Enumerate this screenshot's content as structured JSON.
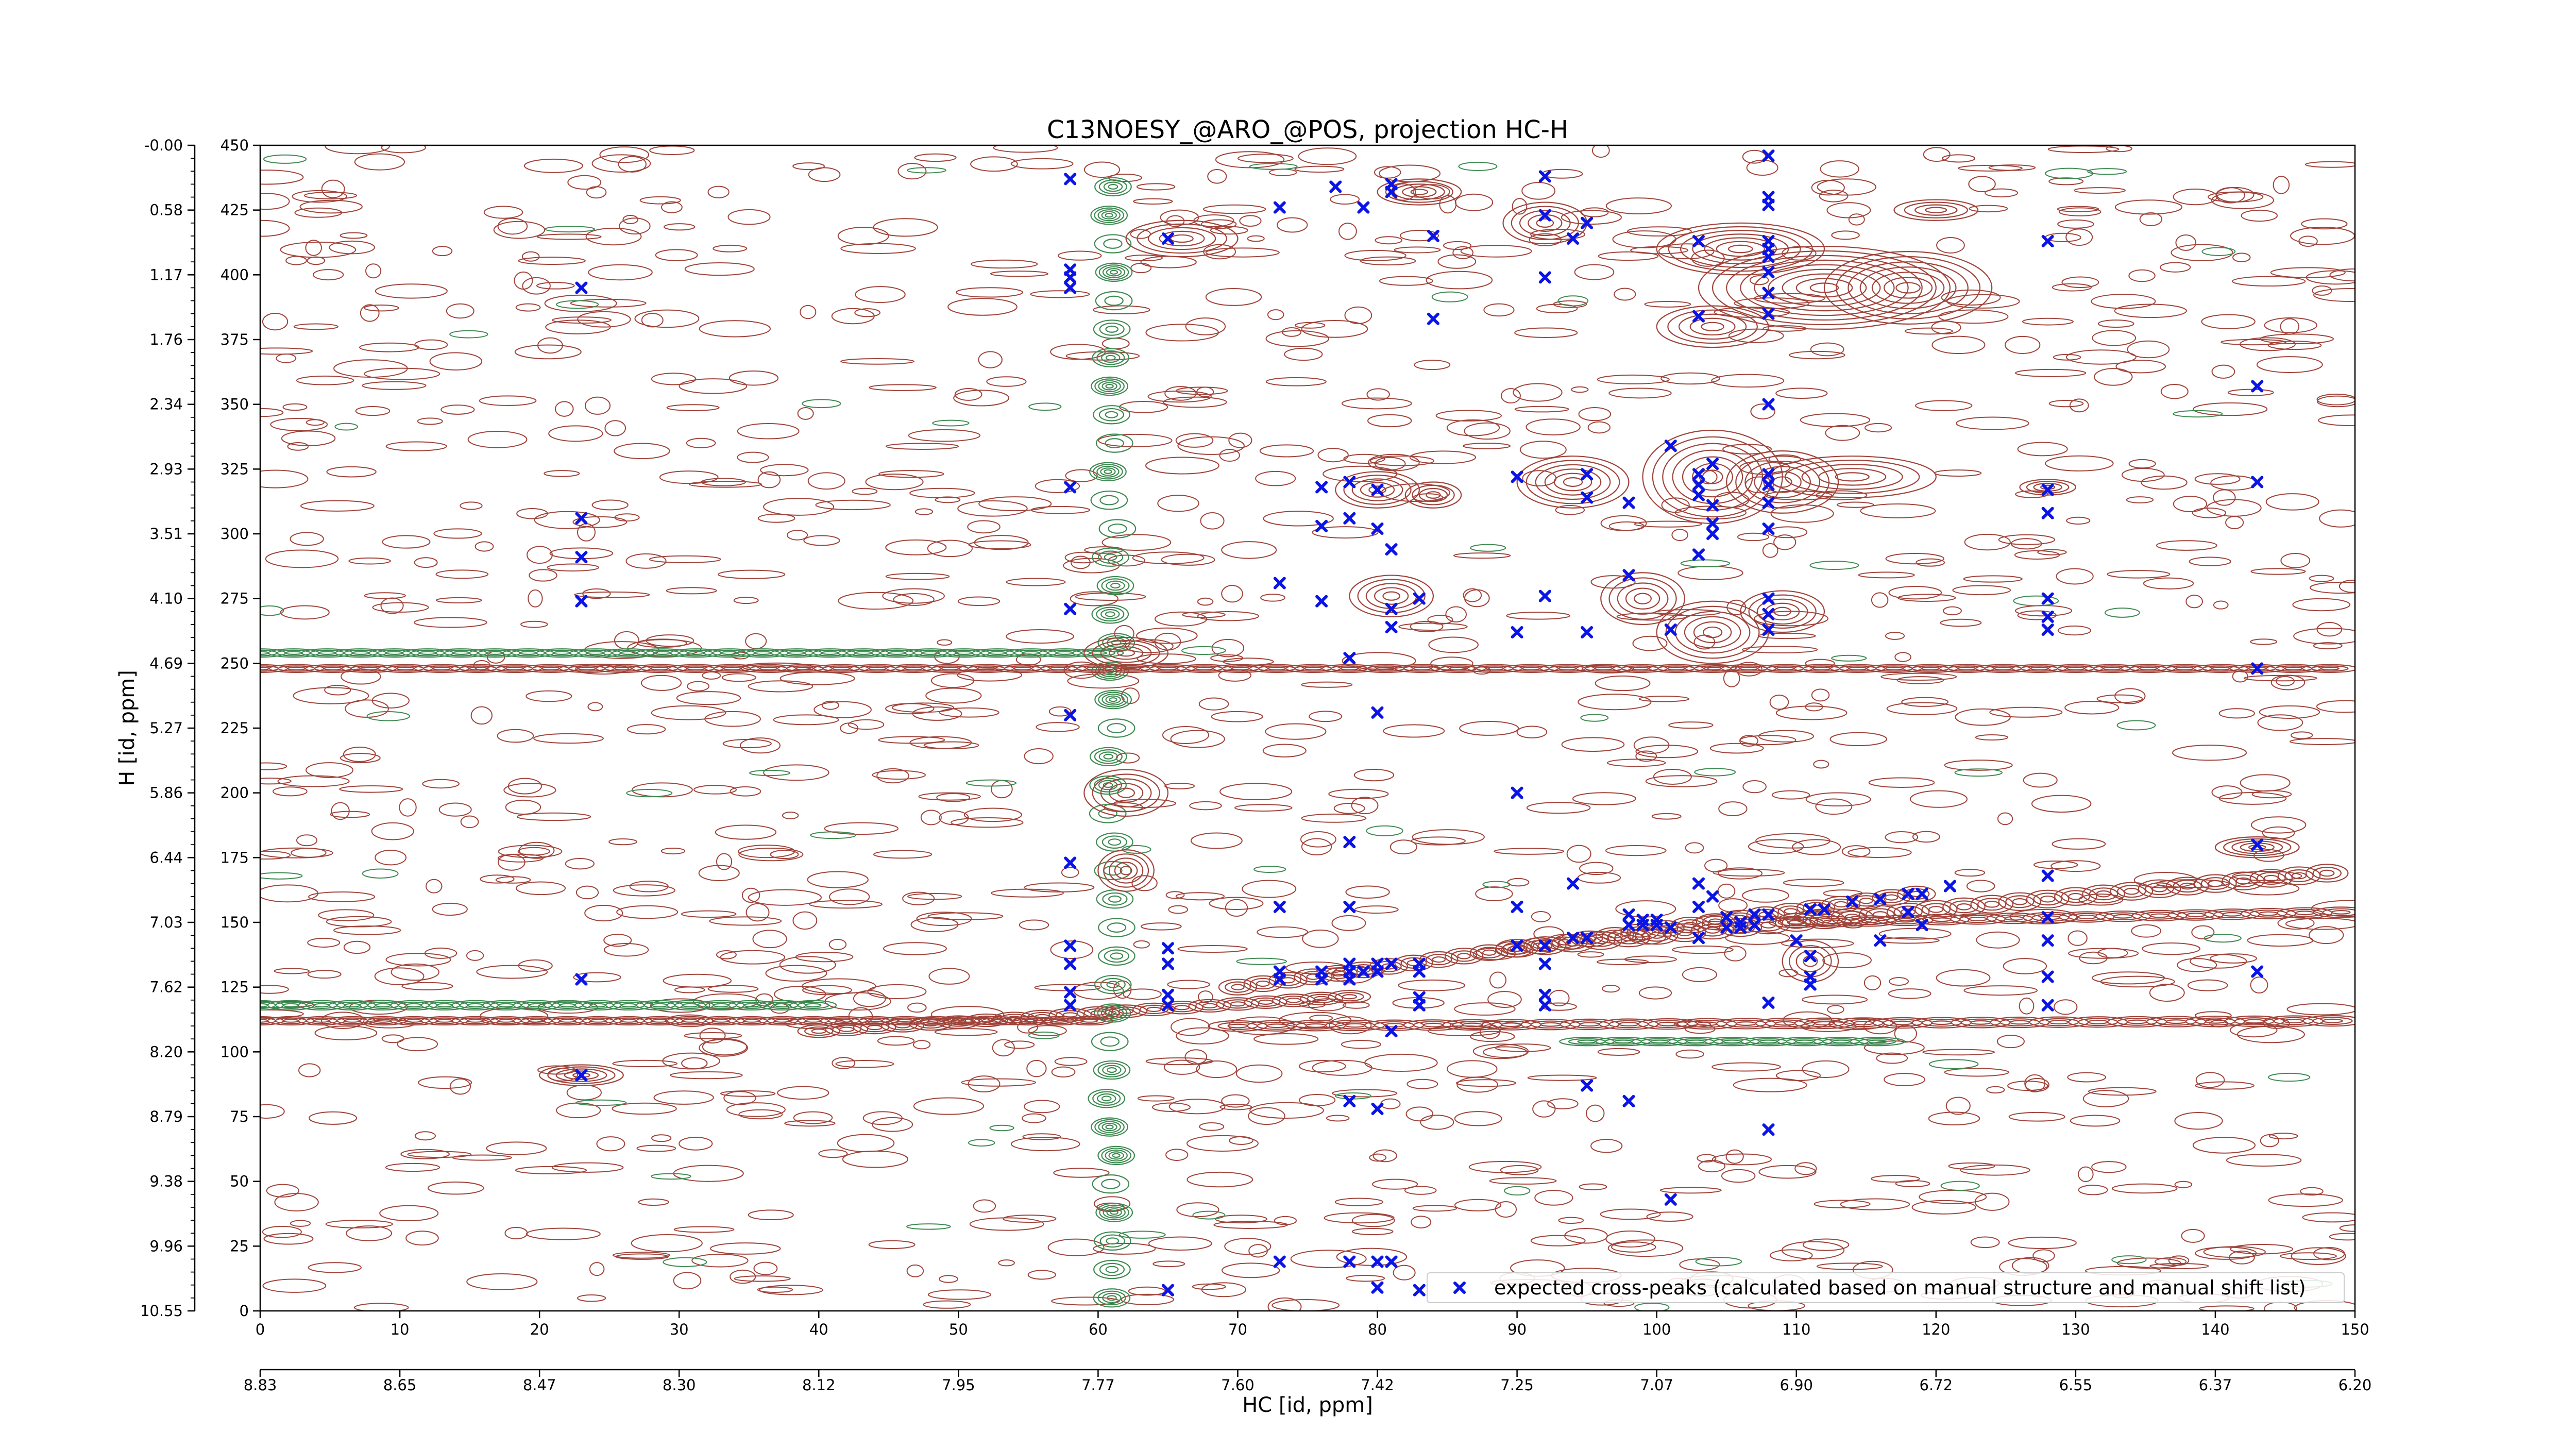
{
  "chart_data": {
    "type": "scatter",
    "title": "C13NOESY_@ARO_@POS, projection HC-H",
    "xlabel": "HC [id, ppm]",
    "ylabel": "H [id, ppm]",
    "xlim": [
      0,
      150
    ],
    "ylim": [
      0,
      450
    ],
    "x_ticks": [
      0,
      10,
      20,
      30,
      40,
      50,
      60,
      70,
      80,
      90,
      100,
      110,
      120,
      130,
      140,
      150
    ],
    "x_ppm_ticks": [
      "8.83",
      "8.65",
      "8.47",
      "8.30",
      "8.12",
      "7.95",
      "7.77",
      "7.60",
      "7.42",
      "7.25",
      "7.07",
      "6.90",
      "6.72",
      "6.55",
      "6.37",
      "6.20"
    ],
    "y_ticks": [
      450,
      425,
      400,
      375,
      350,
      325,
      300,
      275,
      250,
      225,
      200,
      175,
      150,
      125,
      100,
      75,
      50,
      25,
      0
    ],
    "y_ppm_ticks": [
      "-0.00",
      "0.58",
      "1.17",
      "1.76",
      "2.34",
      "2.93",
      "3.51",
      "4.10",
      "4.69",
      "5.27",
      "5.86",
      "6.44",
      "7.03",
      "7.62",
      "8.20",
      "8.79",
      "9.38",
      "9.96",
      "10.55"
    ],
    "grid": false,
    "legend_position": "bottom-right",
    "colors": {
      "positive_contours": "#a0443b",
      "negative_contours": "#3f8a52",
      "peaks": "#0a14e6"
    },
    "background_layer": "contour map (positive red-brown contours, negative green contours) — raster background, drawn procedurally",
    "series": [
      {
        "name": "expected cross-peaks (calculated based on manual structure and manual shift list)",
        "marker": "x",
        "color": "#0a14e6",
        "points": [
          [
            23,
            395
          ],
          [
            23,
            306
          ],
          [
            23,
            291
          ],
          [
            23,
            274
          ],
          [
            23,
            128
          ],
          [
            23,
            91
          ],
          [
            77,
            434
          ],
          [
            58,
            437
          ],
          [
            58,
            402
          ],
          [
            58,
            399
          ],
          [
            58,
            395
          ],
          [
            58,
            318
          ],
          [
            58,
            271
          ],
          [
            58,
            230
          ],
          [
            58,
            173
          ],
          [
            58,
            141
          ],
          [
            58,
            134
          ],
          [
            58,
            123
          ],
          [
            58,
            118
          ],
          [
            65,
            414
          ],
          [
            65,
            140
          ],
          [
            65,
            134
          ],
          [
            65,
            122
          ],
          [
            65,
            118
          ],
          [
            65,
            8
          ],
          [
            73,
            426
          ],
          [
            73,
            281
          ],
          [
            73,
            156
          ],
          [
            73,
            131
          ],
          [
            73,
            128
          ],
          [
            73,
            19
          ],
          [
            76,
            318
          ],
          [
            76,
            303
          ],
          [
            76,
            274
          ],
          [
            76,
            131
          ],
          [
            76,
            128
          ],
          [
            78,
            320
          ],
          [
            78,
            306
          ],
          [
            78,
            252
          ],
          [
            78,
            181
          ],
          [
            78,
            156
          ],
          [
            78,
            134
          ],
          [
            78,
            131
          ],
          [
            78,
            128
          ],
          [
            78,
            81
          ],
          [
            78,
            19
          ],
          [
            79,
            426
          ],
          [
            79,
            131
          ],
          [
            80,
            317
          ],
          [
            80,
            302
          ],
          [
            80,
            231
          ],
          [
            80,
            134
          ],
          [
            80,
            131
          ],
          [
            80,
            78
          ],
          [
            80,
            19
          ],
          [
            80,
            9
          ],
          [
            81,
            435
          ],
          [
            81,
            432
          ],
          [
            81,
            294
          ],
          [
            81,
            271
          ],
          [
            81,
            264
          ],
          [
            81,
            134
          ],
          [
            81,
            108
          ],
          [
            81,
            19
          ],
          [
            83,
            275
          ],
          [
            83,
            134
          ],
          [
            83,
            131
          ],
          [
            83,
            121
          ],
          [
            83,
            118
          ],
          [
            83,
            8
          ],
          [
            84,
            415
          ],
          [
            84,
            383
          ],
          [
            90,
            322
          ],
          [
            90,
            262
          ],
          [
            90,
            200
          ],
          [
            90,
            156
          ],
          [
            90,
            141
          ],
          [
            92,
            438
          ],
          [
            92,
            423
          ],
          [
            92,
            399
          ],
          [
            92,
            276
          ],
          [
            92,
            141
          ],
          [
            92,
            134
          ],
          [
            92,
            122
          ],
          [
            92,
            118
          ],
          [
            94,
            414
          ],
          [
            94,
            165
          ],
          [
            94,
            144
          ],
          [
            95,
            420
          ],
          [
            95,
            144
          ],
          [
            95,
            87
          ],
          [
            95,
            323
          ],
          [
            95,
            314
          ],
          [
            95,
            262
          ],
          [
            98,
            312
          ],
          [
            98,
            284
          ],
          [
            98,
            153
          ],
          [
            98,
            149
          ],
          [
            98,
            81
          ],
          [
            99,
            151
          ],
          [
            99,
            149
          ],
          [
            100,
            151
          ],
          [
            100,
            149
          ],
          [
            101,
            334
          ],
          [
            101,
            263
          ],
          [
            101,
            148
          ],
          [
            101,
            43
          ],
          [
            103,
            413
          ],
          [
            103,
            384
          ],
          [
            103,
            323
          ],
          [
            103,
            319
          ],
          [
            103,
            315
          ],
          [
            103,
            292
          ],
          [
            103,
            165
          ],
          [
            103,
            156
          ],
          [
            103,
            144
          ],
          [
            104,
            327
          ],
          [
            104,
            311
          ],
          [
            104,
            304
          ],
          [
            104,
            300
          ],
          [
            104,
            160
          ],
          [
            105,
            152
          ],
          [
            105,
            148
          ],
          [
            106,
            150
          ],
          [
            106,
            148
          ],
          [
            107,
            153
          ],
          [
            107,
            149
          ],
          [
            108,
            446
          ],
          [
            108,
            430
          ],
          [
            108,
            427
          ],
          [
            108,
            413
          ],
          [
            108,
            410
          ],
          [
            108,
            407
          ],
          [
            108,
            401
          ],
          [
            108,
            393
          ],
          [
            108,
            385
          ],
          [
            108,
            350
          ],
          [
            108,
            323
          ],
          [
            108,
            319
          ],
          [
            108,
            312
          ],
          [
            108,
            302
          ],
          [
            108,
            275
          ],
          [
            108,
            269
          ],
          [
            108,
            263
          ],
          [
            108,
            153
          ],
          [
            108,
            119
          ],
          [
            108,
            70
          ],
          [
            110,
            143
          ],
          [
            111,
            155
          ],
          [
            111,
            137
          ],
          [
            111,
            129
          ],
          [
            111,
            126
          ],
          [
            112,
            155
          ],
          [
            114,
            158
          ],
          [
            116,
            159
          ],
          [
            116,
            143
          ],
          [
            118,
            154
          ],
          [
            118,
            161
          ],
          [
            119,
            161
          ],
          [
            119,
            149
          ],
          [
            121,
            164
          ],
          [
            128,
            413
          ],
          [
            128,
            317
          ],
          [
            128,
            308
          ],
          [
            128,
            275
          ],
          [
            128,
            268
          ],
          [
            128,
            263
          ],
          [
            128,
            168
          ],
          [
            128,
            152
          ],
          [
            128,
            143
          ],
          [
            128,
            129
          ],
          [
            128,
            118
          ],
          [
            143,
            357
          ],
          [
            143,
            320
          ],
          [
            143,
            248
          ],
          [
            143,
            180
          ],
          [
            143,
            131
          ]
        ]
      }
    ]
  }
}
